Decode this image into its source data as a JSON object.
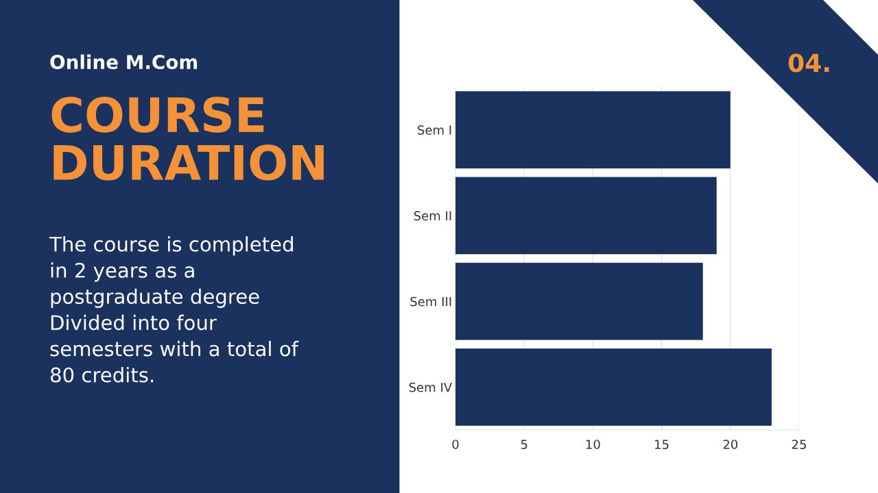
{
  "chart_data": {
    "type": "bar",
    "orientation": "horizontal",
    "subtitle": "Online M.Com",
    "title": "COURSE\nDURATION",
    "annotations": [
      "04.",
      "The course is completed\nin 2 years as a\npostgraduate degree\nDivided into four\nsemesters with a total of\n80 credits."
    ],
    "categories": [
      "Sem I",
      "Sem II",
      "Sem III",
      "Sem IV"
    ],
    "values": [
      20,
      19,
      18,
      23
    ],
    "color": "#1b325e",
    "xlim": [
      0,
      25
    ],
    "xticks": [
      0,
      5,
      10,
      15,
      20,
      25
    ],
    "grid": "x"
  }
}
